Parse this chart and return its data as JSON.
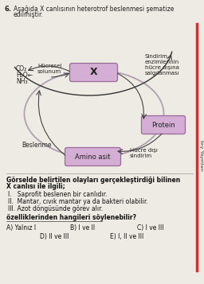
{
  "bg_color": "#eeeae4",
  "question_number": "6.",
  "title_line1": "Aşağıda X canlısının heterotrof beslenmesi şematize",
  "title_line2": "edilmiştir.",
  "box_X_label": "X",
  "box_protein_label": "Protein",
  "box_amino_label": "Amino asit",
  "co2_label": "CO₂",
  "h2o_label": "H₂O←",
  "nh3_label": "NH₃",
  "hucresel_label": "Hücresel\nsolunum",
  "sindirim_label": "Sindirim\nenzimlerinin\nhücre dışına\nsalgılanması",
  "hucre_disi_label": "Hücre dışı\nsindirim",
  "beslenme_label": "Beslenme",
  "body_bold1": "Görselde belirtilen olayları gerçekleştirdiği bilinen",
  "body_bold2": "X canlısı ile ilgili;",
  "roman1": "I.   Saprofit beslenen bir canlıdır.",
  "roman2": "II.  Mantar, cıvık mantar ya da bakteri olabilir.",
  "roman3": "III. Azot döngüsünde görev alır.",
  "bold_question": "özelliklerinden hangileri söylenebilir?",
  "ans_A": "A) Yalnız I",
  "ans_B": "B) I ve II",
  "ans_C": "C) I ve III",
  "ans_D": "D) II ve III",
  "ans_E": "E) I, II ve III",
  "side_text": "bry Yayınları",
  "box_face": "#d4aed4",
  "box_edge": "#9a6a9a",
  "arrow_color": "#444444",
  "ellipse_color": "#b0a0b0",
  "right_bar_color": "#cc4444"
}
